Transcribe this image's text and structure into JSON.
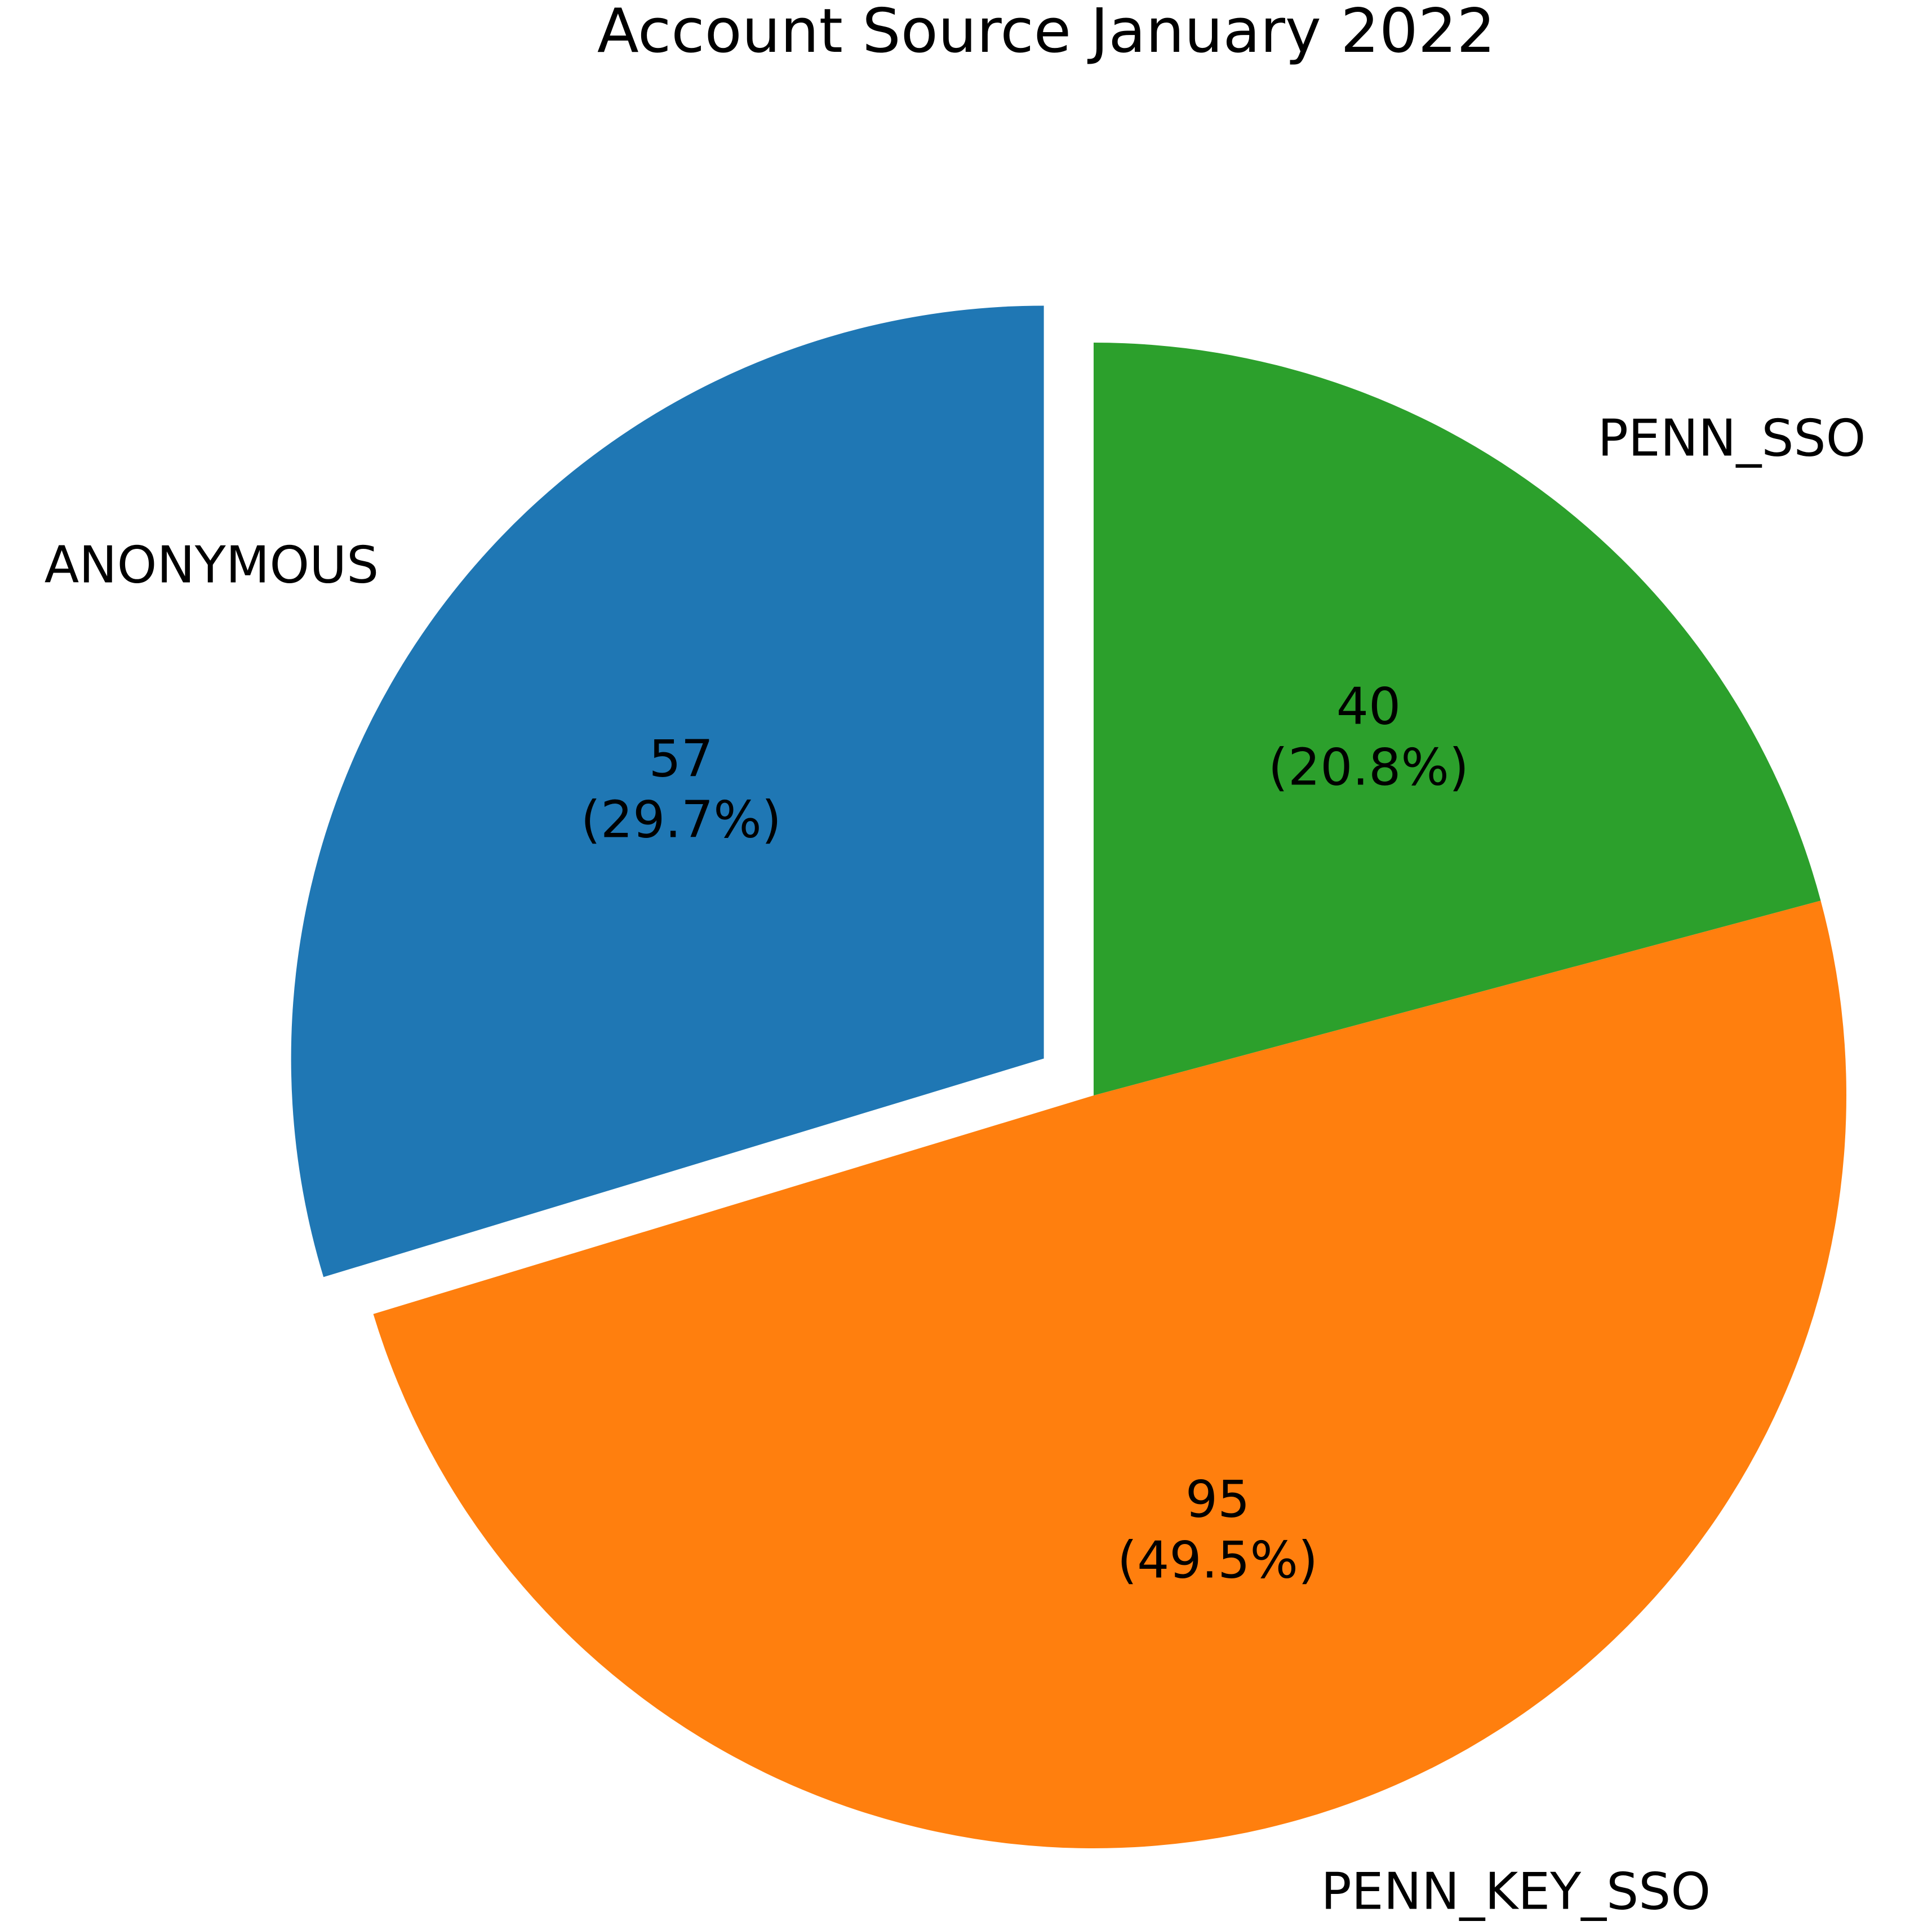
{
  "chart_data": {
    "type": "pie",
    "title": "Account Source January 2022",
    "slices": [
      {
        "label": "ANONYMOUS",
        "value": 57,
        "percent": "29.7%",
        "color": "#1f77b4",
        "exploded": true
      },
      {
        "label": "PENN_KEY_SSO",
        "value": 95,
        "percent": "49.5%",
        "color": "#ff7f0e",
        "exploded": false
      },
      {
        "label": "PENN_SSO",
        "value": 40,
        "percent": "20.8%",
        "color": "#2ca02c",
        "exploded": false
      }
    ],
    "start_angle": "90°",
    "direction": "counterclockwise"
  }
}
